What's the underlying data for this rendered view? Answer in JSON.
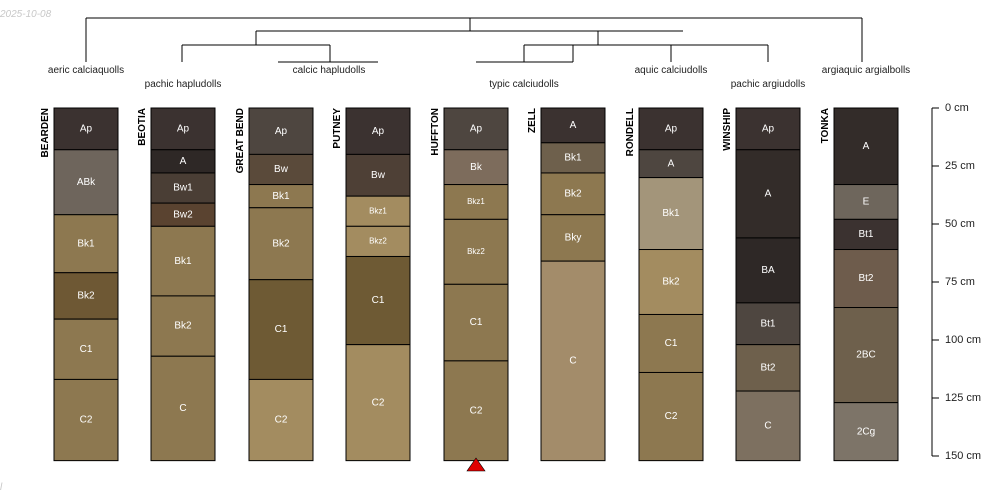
{
  "corner": {
    "date": "2025-10-08",
    "footer": "l"
  },
  "taxa": [
    "aeric calciaquolls",
    "pachic hapludolls",
    "calcic hapludolls",
    "typic calciudolls",
    "aquic calciudolls",
    "pachic argiudolls",
    "argiaquic argialbolls"
  ],
  "depth_axis": {
    "unit": "cm",
    "max_depth": 150,
    "ticks": [
      {
        "value": 0,
        "label": "0 cm"
      },
      {
        "value": 25,
        "label": "25 cm"
      },
      {
        "value": 50,
        "label": "50 cm"
      },
      {
        "value": 75,
        "label": "75 cm"
      },
      {
        "value": 100,
        "label": "100 cm"
      },
      {
        "value": 125,
        "label": "125 cm"
      },
      {
        "value": 150,
        "label": "150 cm"
      }
    ]
  },
  "marker": {
    "profile": "HUFFTON",
    "color": "#e00000"
  },
  "profiles": [
    {
      "name": "BEARDEN",
      "horizons": [
        {
          "name": "Ap",
          "top": 0,
          "bottom": 18,
          "color": "#3b3230"
        },
        {
          "name": "ABk",
          "top": 18,
          "bottom": 46,
          "color": "#6e655c"
        },
        {
          "name": "Bk1",
          "top": 46,
          "bottom": 71,
          "color": "#8d7850"
        },
        {
          "name": "Bk2",
          "top": 71,
          "bottom": 91,
          "color": "#6e5834"
        },
        {
          "name": "C1",
          "top": 91,
          "bottom": 117,
          "color": "#8d7850"
        },
        {
          "name": "C2",
          "top": 117,
          "bottom": 152,
          "color": "#8d7850"
        }
      ]
    },
    {
      "name": "BEOTIA",
      "horizons": [
        {
          "name": "Ap",
          "top": 0,
          "bottom": 18,
          "color": "#3b3230"
        },
        {
          "name": "A",
          "top": 18,
          "bottom": 28,
          "color": "#2e2826"
        },
        {
          "name": "Bw1",
          "top": 28,
          "bottom": 41,
          "color": "#4a3e35"
        },
        {
          "name": "Bw2",
          "top": 41,
          "bottom": 51,
          "color": "#5a4330"
        },
        {
          "name": "Bk1",
          "top": 51,
          "bottom": 81,
          "color": "#8d7850"
        },
        {
          "name": "Bk2",
          "top": 81,
          "bottom": 107,
          "color": "#8d7850"
        },
        {
          "name": "C",
          "top": 107,
          "bottom": 152,
          "color": "#8d7850"
        }
      ]
    },
    {
      "name": "GREAT BEND",
      "horizons": [
        {
          "name": "Ap",
          "top": 0,
          "bottom": 20,
          "color": "#4e4640"
        },
        {
          "name": "Bw",
          "top": 20,
          "bottom": 33,
          "color": "#5a4a3a"
        },
        {
          "name": "Bk1",
          "top": 33,
          "bottom": 43,
          "color": "#8d7850"
        },
        {
          "name": "Bk2",
          "top": 43,
          "bottom": 74,
          "color": "#8d7850"
        },
        {
          "name": "C1",
          "top": 74,
          "bottom": 117,
          "color": "#6e5a34"
        },
        {
          "name": "C2",
          "top": 117,
          "bottom": 152,
          "color": "#a38c60"
        }
      ]
    },
    {
      "name": "PUTNEY",
      "horizons": [
        {
          "name": "Ap",
          "top": 0,
          "bottom": 20,
          "color": "#3b3230"
        },
        {
          "name": "Bw",
          "top": 20,
          "bottom": 38,
          "color": "#4e4036"
        },
        {
          "name": "Bkz1",
          "top": 38,
          "bottom": 51,
          "color": "#a38c60"
        },
        {
          "name": "Bkz2",
          "top": 51,
          "bottom": 64,
          "color": "#a38c60"
        },
        {
          "name": "C1",
          "top": 64,
          "bottom": 102,
          "color": "#6e5a34"
        },
        {
          "name": "C2",
          "top": 102,
          "bottom": 152,
          "color": "#a38c60"
        }
      ]
    },
    {
      "name": "HUFFTON",
      "horizons": [
        {
          "name": "Ap",
          "top": 0,
          "bottom": 18,
          "color": "#4e4640"
        },
        {
          "name": "Bk",
          "top": 18,
          "bottom": 33,
          "color": "#7d6c5c"
        },
        {
          "name": "Bkz1",
          "top": 33,
          "bottom": 48,
          "color": "#8d7850"
        },
        {
          "name": "Bkz2",
          "top": 48,
          "bottom": 76,
          "color": "#8d7850"
        },
        {
          "name": "C1",
          "top": 76,
          "bottom": 109,
          "color": "#8d7850"
        },
        {
          "name": "C2",
          "top": 109,
          "bottom": 152,
          "color": "#8d7850"
        }
      ]
    },
    {
      "name": "ZELL",
      "horizons": [
        {
          "name": "A",
          "top": 0,
          "bottom": 15,
          "color": "#3b3230"
        },
        {
          "name": "Bk1",
          "top": 15,
          "bottom": 28,
          "color": "#6e604c"
        },
        {
          "name": "Bk2",
          "top": 28,
          "bottom": 46,
          "color": "#8d7850"
        },
        {
          "name": "Bky",
          "top": 46,
          "bottom": 66,
          "color": "#8d7850"
        },
        {
          "name": "C",
          "top": 66,
          "bottom": 152,
          "color": "#a38c6a"
        }
      ]
    },
    {
      "name": "RONDELL",
      "horizons": [
        {
          "name": "Ap",
          "top": 0,
          "bottom": 18,
          "color": "#3b3230"
        },
        {
          "name": "A",
          "top": 18,
          "bottom": 30,
          "color": "#4e4640"
        },
        {
          "name": "Bk1",
          "top": 30,
          "bottom": 61,
          "color": "#a3957a"
        },
        {
          "name": "Bk2",
          "top": 61,
          "bottom": 89,
          "color": "#a38c60"
        },
        {
          "name": "C1",
          "top": 89,
          "bottom": 114,
          "color": "#8d7850"
        },
        {
          "name": "C2",
          "top": 114,
          "bottom": 152,
          "color": "#8d7850"
        }
      ]
    },
    {
      "name": "WINSHIP",
      "horizons": [
        {
          "name": "Ap",
          "top": 0,
          "bottom": 18,
          "color": "#3b3230"
        },
        {
          "name": "A",
          "top": 18,
          "bottom": 56,
          "color": "#332c29"
        },
        {
          "name": "BA",
          "top": 56,
          "bottom": 84,
          "color": "#2e2826"
        },
        {
          "name": "Bt1",
          "top": 84,
          "bottom": 102,
          "color": "#4e4640"
        },
        {
          "name": "Bt2",
          "top": 102,
          "bottom": 122,
          "color": "#6e604c"
        },
        {
          "name": "C",
          "top": 122,
          "bottom": 152,
          "color": "#7d7060"
        }
      ]
    },
    {
      "name": "TONKA",
      "horizons": [
        {
          "name": "A",
          "top": 0,
          "bottom": 33,
          "color": "#332c29"
        },
        {
          "name": "E",
          "top": 33,
          "bottom": 48,
          "color": "#6e665c"
        },
        {
          "name": "Bt1",
          "top": 48,
          "bottom": 61,
          "color": "#3b3230"
        },
        {
          "name": "Bt2",
          "top": 61,
          "bottom": 86,
          "color": "#6e5c4c"
        },
        {
          "name": "2BC",
          "top": 86,
          "bottom": 127,
          "color": "#6e604c"
        },
        {
          "name": "2Cg",
          "top": 127,
          "bottom": 152,
          "color": "#7d7468"
        }
      ]
    }
  ]
}
